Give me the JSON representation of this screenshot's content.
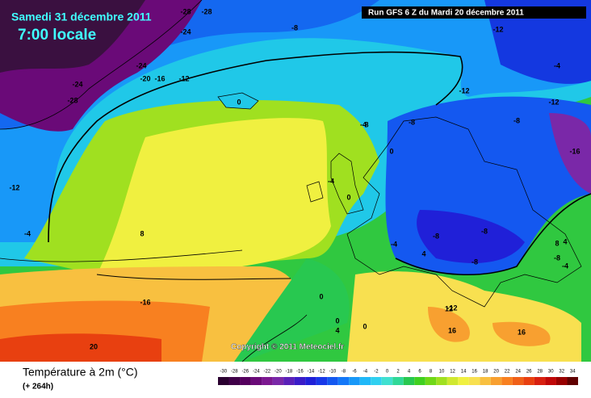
{
  "header": {
    "title": "Samedi 31 décembre 2011",
    "subtitle": "7:00 locale",
    "run": "Run GFS 6 Z du Mardi 20 décembre 2011"
  },
  "map": {
    "copyright": "Copyright © 2011 Meteociel.fr",
    "labels": [
      -28,
      -24,
      -28,
      -24,
      -20,
      -16,
      -12,
      -24,
      -28,
      -8,
      -12,
      -4,
      -12,
      -8,
      -12,
      -16,
      -8,
      -4,
      0,
      8,
      -4,
      0,
      -4,
      -8,
      -8,
      -8,
      -4,
      4,
      -12,
      -8,
      -4,
      8,
      -12,
      -16,
      20,
      0,
      4,
      0,
      8,
      12,
      16,
      16,
      0,
      4,
      0
    ]
  },
  "legend": {
    "title": "Température à 2m (°C)",
    "lead": "(+ 264h)",
    "values": [
      -30,
      -28,
      -26,
      -24,
      -22,
      -20,
      -18,
      -16,
      -14,
      -12,
      -10,
      -8,
      -6,
      -4,
      -2,
      0,
      2,
      4,
      6,
      8,
      10,
      12,
      14,
      16,
      18,
      20,
      22,
      24,
      26,
      28,
      30,
      32,
      34
    ],
    "colors": [
      "#2a0030",
      "#400048",
      "#55005e",
      "#6a0a78",
      "#7c1890",
      "#7a28a8",
      "#5a20b8",
      "#3a1cc8",
      "#2020d8",
      "#1838e8",
      "#1458f0",
      "#1478f8",
      "#1898f8",
      "#20b8f8",
      "#30d0f0",
      "#40e0d0",
      "#30d898",
      "#28c850",
      "#40d020",
      "#70d818",
      "#a0e020",
      "#d0e830",
      "#f0f040",
      "#f8e050",
      "#f8c040",
      "#f8a030",
      "#f88020",
      "#f06018",
      "#e84010",
      "#d82010",
      "#c00808",
      "#980000",
      "#600000"
    ]
  }
}
